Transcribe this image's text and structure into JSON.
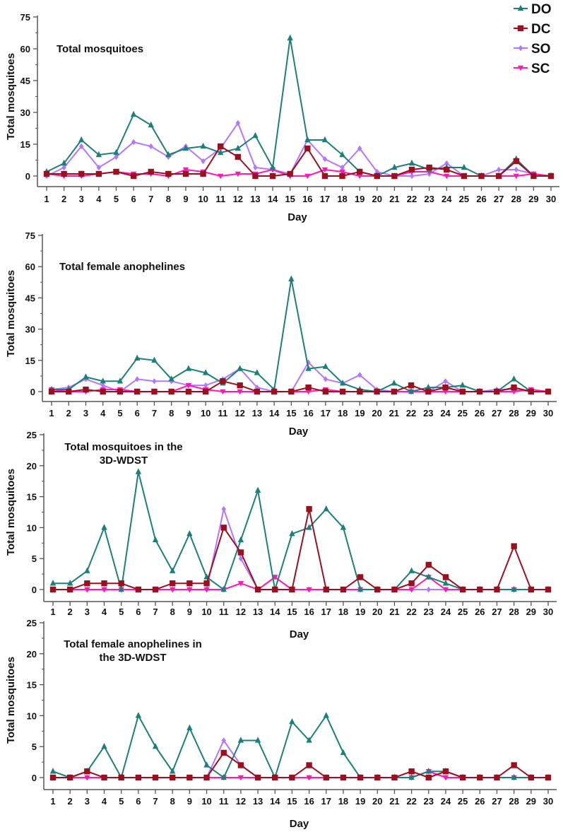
{
  "legend": [
    {
      "name": "DO",
      "color": "#1b8079",
      "marker": "triangle-up"
    },
    {
      "name": "DC",
      "color": "#9b1020",
      "marker": "square"
    },
    {
      "name": "SO",
      "color": "#b377ff",
      "marker": "diamond"
    },
    {
      "name": "SC",
      "color": "#ff18b4",
      "marker": "triangle-down"
    }
  ],
  "chart_data": [
    {
      "type": "line",
      "title": "Total mosquitoes",
      "xlabel": "Day",
      "ylabel": "Total mosquitoes",
      "ylim": [
        0,
        75
      ],
      "yticks": [
        0,
        15,
        30,
        45,
        60,
        75
      ],
      "x": [
        1,
        2,
        3,
        4,
        5,
        6,
        7,
        8,
        9,
        10,
        11,
        12,
        13,
        14,
        15,
        16,
        17,
        18,
        19,
        20,
        21,
        22,
        23,
        24,
        25,
        26,
        27,
        28,
        29,
        30
      ],
      "series": [
        {
          "name": "DO",
          "values": [
            2,
            6,
            17,
            10,
            11,
            29,
            24,
            10,
            13,
            14,
            11,
            13,
            19,
            4,
            65,
            17,
            17,
            10,
            2,
            0,
            4,
            6,
            3,
            4,
            4,
            0,
            0,
            8,
            0,
            0
          ]
        },
        {
          "name": "DC",
          "values": [
            1,
            1,
            1,
            1,
            2,
            0,
            2,
            1,
            1,
            1,
            14,
            9,
            0,
            0,
            1,
            13,
            0,
            0,
            2,
            0,
            0,
            3,
            4,
            3,
            0,
            0,
            0,
            7,
            0,
            0
          ]
        },
        {
          "name": "SO",
          "values": [
            0,
            4,
            14,
            4,
            9,
            16,
            14,
            9,
            14,
            7,
            13,
            25,
            4,
            3,
            1,
            17,
            8,
            4,
            13,
            2,
            0,
            0,
            1,
            6,
            0,
            0,
            3,
            3,
            1,
            0
          ]
        },
        {
          "name": "SC",
          "values": [
            1,
            0,
            0,
            1,
            2,
            1,
            1,
            0,
            3,
            2,
            0,
            1,
            1,
            3,
            0,
            0,
            3,
            2,
            0,
            0,
            0,
            2,
            2,
            0,
            0,
            0,
            0,
            0,
            1,
            0
          ]
        }
      ]
    },
    {
      "type": "line",
      "title": "Total female anophelines",
      "xlabel": "Day",
      "ylabel": "Total mosquitoes",
      "ylim": [
        0,
        75
      ],
      "yticks": [
        0,
        15,
        30,
        45,
        60,
        75
      ],
      "x": [
        1,
        2,
        3,
        4,
        5,
        6,
        7,
        8,
        9,
        10,
        11,
        12,
        13,
        14,
        15,
        16,
        17,
        18,
        19,
        20,
        21,
        22,
        23,
        24,
        25,
        26,
        27,
        28,
        29,
        30
      ],
      "series": [
        {
          "name": "DO",
          "values": [
            1,
            1,
            7,
            5,
            5,
            16,
            15,
            6,
            11,
            9,
            4,
            11,
            9,
            1,
            54,
            11,
            12,
            4,
            1,
            0,
            4,
            0,
            2,
            2,
            3,
            0,
            0,
            6,
            0,
            0
          ]
        },
        {
          "name": "DC",
          "values": [
            0,
            0,
            1,
            0,
            0,
            0,
            0,
            0,
            0,
            0,
            5,
            3,
            0,
            0,
            0,
            2,
            0,
            0,
            0,
            0,
            0,
            3,
            0,
            2,
            0,
            0,
            0,
            2,
            0,
            0
          ]
        },
        {
          "name": "SO",
          "values": [
            1,
            2,
            6,
            3,
            0,
            6,
            5,
            5,
            3,
            3,
            6,
            11,
            2,
            0,
            0,
            14,
            6,
            4,
            8,
            1,
            0,
            0,
            0,
            5,
            0,
            0,
            1,
            1,
            0,
            0
          ]
        },
        {
          "name": "SC",
          "values": [
            1,
            0,
            0,
            1,
            1,
            0,
            0,
            0,
            3,
            1,
            0,
            0,
            0,
            0,
            0,
            0,
            1,
            0,
            0,
            0,
            0,
            0,
            0,
            0,
            0,
            0,
            0,
            0,
            1,
            0
          ]
        }
      ]
    },
    {
      "type": "line",
      "title": [
        "Total mosquitoes in the",
        "3D-WDST"
      ],
      "xlabel": "Day",
      "ylabel": "Total mosquitoes",
      "ylim": [
        0,
        25
      ],
      "yticks": [
        0,
        5,
        10,
        15,
        20,
        25
      ],
      "x": [
        1,
        2,
        3,
        4,
        5,
        6,
        7,
        8,
        9,
        10,
        11,
        12,
        13,
        14,
        15,
        16,
        17,
        18,
        19,
        20,
        21,
        22,
        23,
        24,
        25,
        26,
        27,
        28,
        29,
        30
      ],
      "series": [
        {
          "name": "DO",
          "values": [
            1,
            1,
            3,
            10,
            0,
            19,
            8,
            3,
            9,
            2,
            0,
            8,
            16,
            0,
            9,
            10,
            13,
            10,
            0,
            0,
            0,
            3,
            2,
            1,
            0,
            0,
            0,
            0,
            0,
            0
          ]
        },
        {
          "name": "DC",
          "values": [
            0,
            0,
            1,
            1,
            1,
            0,
            0,
            1,
            1,
            1,
            10,
            6,
            0,
            0,
            0,
            13,
            0,
            0,
            2,
            0,
            0,
            1,
            4,
            2,
            0,
            0,
            0,
            7,
            0,
            0
          ]
        },
        {
          "name": "SO",
          "values": [
            0,
            0,
            0,
            0,
            0,
            0,
            0,
            0,
            0,
            0,
            13,
            5,
            0,
            2,
            0,
            0,
            0,
            0,
            0,
            0,
            0,
            0,
            0,
            0,
            0,
            0,
            0,
            0,
            0,
            0
          ]
        },
        {
          "name": "SC",
          "values": [
            0,
            0,
            0,
            0,
            0,
            0,
            0,
            0,
            0,
            0,
            0,
            1,
            0,
            2,
            0,
            0,
            0,
            0,
            0,
            0,
            0,
            0,
            2,
            0,
            0,
            0,
            0,
            0,
            0,
            0
          ]
        }
      ]
    },
    {
      "type": "line",
      "title": [
        "Total female anophelines in",
        "the 3D-WDST"
      ],
      "xlabel": "Day",
      "ylabel": "Total mosquitoes",
      "ylim": [
        0,
        25
      ],
      "yticks": [
        0,
        5,
        10,
        15,
        20,
        25
      ],
      "x": [
        1,
        2,
        3,
        4,
        5,
        6,
        7,
        8,
        9,
        10,
        11,
        12,
        13,
        14,
        15,
        16,
        17,
        18,
        19,
        20,
        21,
        22,
        23,
        24,
        25,
        26,
        27,
        28,
        29,
        30
      ],
      "series": [
        {
          "name": "DO",
          "values": [
            1,
            0,
            1,
            5,
            0,
            10,
            5,
            1,
            8,
            2,
            0,
            6,
            6,
            0,
            9,
            6,
            10,
            4,
            0,
            0,
            0,
            0,
            1,
            1,
            0,
            0,
            0,
            0,
            0,
            0
          ]
        },
        {
          "name": "DC",
          "values": [
            0,
            0,
            1,
            0,
            0,
            0,
            0,
            0,
            0,
            0,
            4,
            2,
            0,
            0,
            0,
            2,
            0,
            0,
            0,
            0,
            0,
            1,
            0,
            1,
            0,
            0,
            0,
            2,
            0,
            0
          ]
        },
        {
          "name": "SO",
          "values": [
            0,
            0,
            0,
            0,
            0,
            0,
            0,
            0,
            0,
            0,
            6,
            2,
            0,
            0,
            0,
            0,
            0,
            0,
            0,
            0,
            0,
            0,
            1,
            0,
            0,
            0,
            0,
            0,
            0,
            0
          ]
        },
        {
          "name": "SC",
          "values": [
            0,
            0,
            0,
            0,
            0,
            0,
            0,
            0,
            0,
            0,
            0,
            0,
            0,
            0,
            0,
            0,
            0,
            0,
            0,
            0,
            0,
            0,
            1,
            0,
            0,
            0,
            0,
            0,
            0,
            0
          ]
        }
      ]
    }
  ]
}
